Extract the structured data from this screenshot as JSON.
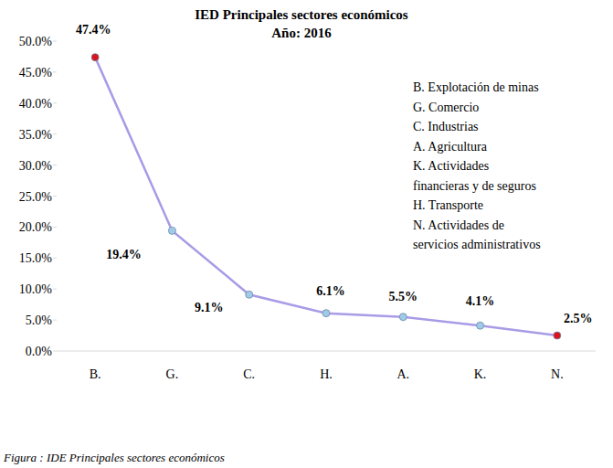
{
  "chart_data": {
    "type": "line",
    "title": "IED Principales sectores económicos",
    "subtitle": "Año: 2016",
    "categories": [
      "B.",
      "G.",
      "C.",
      "H.",
      "A.",
      "K.",
      "N."
    ],
    "values": [
      47.4,
      19.4,
      9.1,
      6.1,
      5.5,
      4.1,
      2.5
    ],
    "value_labels": [
      "47.4%",
      "19.4%",
      "9.1%",
      "6.1%",
      "5.5%",
      "4.1%",
      "2.5%"
    ],
    "color": "#a99be6",
    "colors": [
      "#d9141e",
      "#9fcbe8",
      "#9fcbe8",
      "#9fcbe8",
      "#9fcbe8",
      "#9fcbe8",
      "#d9141e"
    ],
    "marker": "circle",
    "ylim": [
      0,
      50
    ],
    "yticks": [
      {
        "value": 0,
        "label": "0.0%"
      },
      {
        "value": 5,
        "label": "5.0%"
      },
      {
        "value": 10,
        "label": "10.0%"
      },
      {
        "value": 15,
        "label": "15.0%"
      },
      {
        "value": 20,
        "label": "20.0%"
      },
      {
        "value": 25,
        "label": "25.0%"
      },
      {
        "value": 30,
        "label": "30.0%"
      },
      {
        "value": 35,
        "label": "35.0%"
      },
      {
        "value": 40,
        "label": "40.0%"
      },
      {
        "value": 45,
        "label": "45.0%"
      },
      {
        "value": 50,
        "label": "50.0%"
      }
    ],
    "grid": false,
    "data_labels": true,
    "annotations": [
      "B. Explotación de minas",
      "G. Comercio",
      "C. Industrias",
      "A. Agricultura",
      "K. Actividades",
      "financieras y de seguros",
      "H. Transporte",
      "N. Actividades de",
      "servicios administrativos"
    ],
    "caption": "Figura : IDE Principales sectores económicos"
  }
}
